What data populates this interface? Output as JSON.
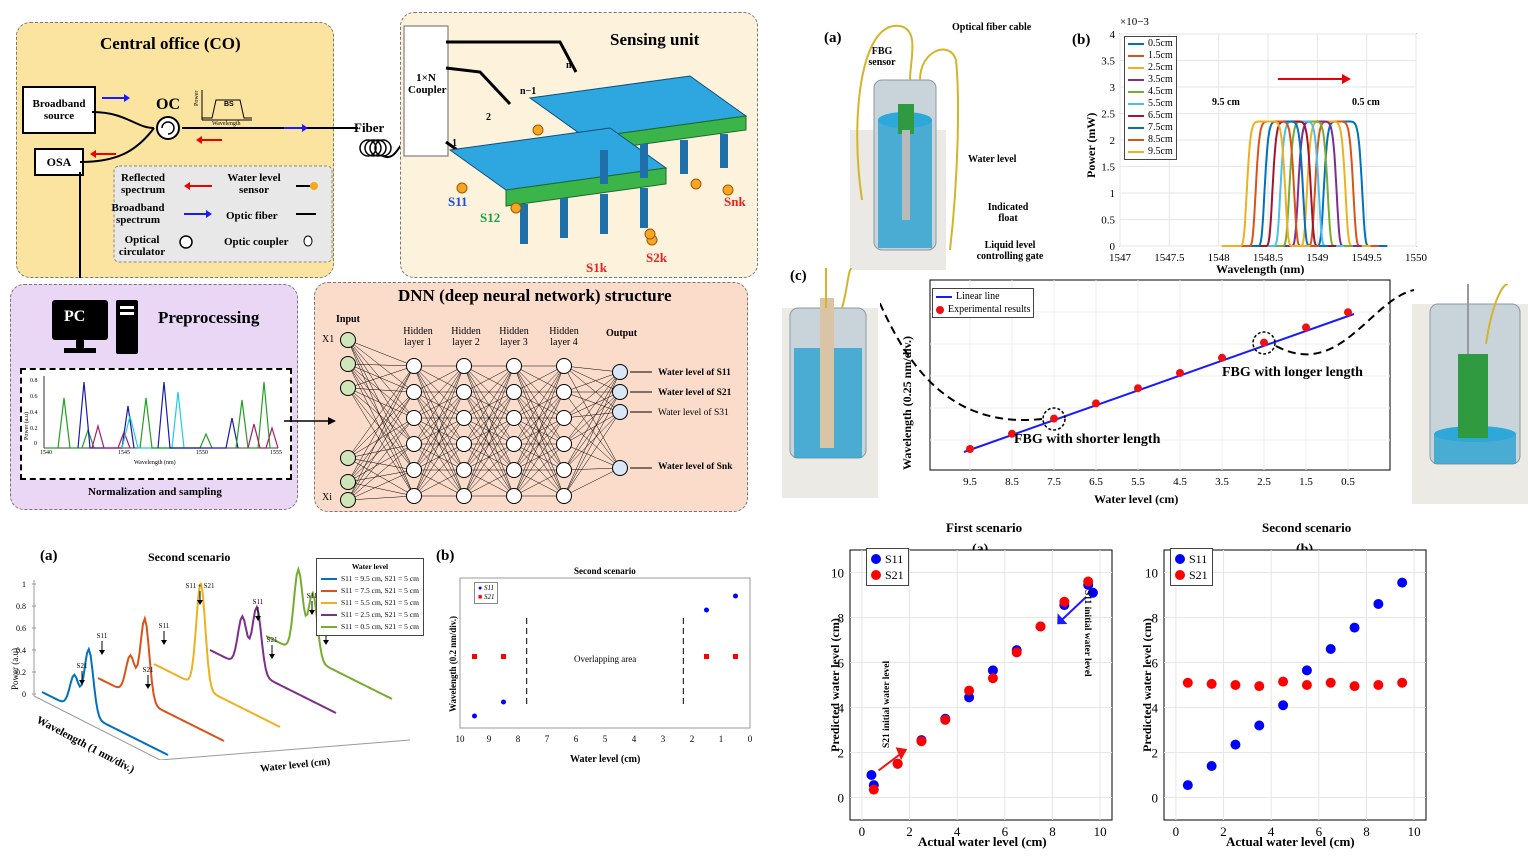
{
  "co": {
    "title": "Central office (CO)",
    "broadband": "Broadband source",
    "osa": "OSA",
    "oc": "OC",
    "bs": "BS",
    "power": "Power",
    "wavelength": "Wavelength",
    "fiber": "Fiber",
    "legend": {
      "reflected": "Reflected spectrum",
      "broadband": "Broadband spectrum",
      "circulator": "Optical circulator",
      "wl_sensor": "Water level sensor",
      "optic_fiber": "Optic fiber",
      "optic_coupler": "Optic coupler"
    }
  },
  "sensing": {
    "title": "Sensing unit",
    "coupler": "1×N Coupler",
    "labels": [
      "S11",
      "S12",
      "S1k",
      "S2k",
      "Snk"
    ],
    "branches": [
      "1",
      "2",
      "n−1",
      "n"
    ]
  },
  "pre": {
    "title": "Preprocessing",
    "pc": "PC",
    "caption": "Normalization and sampling",
    "xlabel": "Wavelength (nm)",
    "ylabel": "Power (a.u)",
    "xticks": [
      "1540",
      "1545",
      "1550",
      "1555"
    ],
    "yticks": [
      "0",
      "0.2",
      "0.4",
      "0.6",
      "0.8"
    ]
  },
  "dnn": {
    "title": "DNN (deep neural network) structure",
    "input": "Input",
    "layers": [
      "Hidden layer 1",
      "Hidden layer 2",
      "Hidden layer 3",
      "Hidden layer 4"
    ],
    "output": "Output",
    "x1": "X1",
    "xi": "Xi",
    "outputs": [
      "Water level of S11",
      "Water level of S21",
      "Water level of S31",
      "Water level of Snk"
    ]
  },
  "fig_a_left": {
    "tag": "(a)",
    "title": "Second scenario",
    "ylabel": "Power (a.u)",
    "xlabel": "Wavelength (1 nm/div.)",
    "zlabel": "Water level (cm)",
    "yticks": [
      "0",
      "0.2",
      "0.4",
      "0.6",
      "0.8",
      "1"
    ],
    "legend_title": "Water level",
    "series": [
      {
        "name": "S11 = 9.5 cm, S21 = 5 cm",
        "color": "#0072BD"
      },
      {
        "name": "S11 = 7.5 cm, S21 = 5 cm",
        "color": "#D95319"
      },
      {
        "name": "S11 = 5.5 cm, S21 = 5 cm",
        "color": "#EDB120"
      },
      {
        "name": "S11 = 2.5 cm, S21 = 5 cm",
        "color": "#7E2F8E"
      },
      {
        "name": "S11 = 0.5 cm, S21 = 5 cm",
        "color": "#77AC30"
      }
    ],
    "annotations": [
      "S21",
      "S11",
      "S21",
      "S11",
      "S11 + S21",
      "S11",
      "S21",
      "S11",
      "S21"
    ]
  },
  "fig_b_left": {
    "tag": "(b)",
    "title": "Second scenario",
    "ylabel": "Wavelength (0.2 nm/div.)",
    "xlabel": "Water  level (cm)",
    "overlap": "Overlapping area",
    "legend": [
      "S11",
      "S21"
    ],
    "xticks": [
      "10",
      "9",
      "8",
      "7",
      "6",
      "5",
      "4",
      "3",
      "2",
      "1",
      "0"
    ]
  },
  "fig_top_a": {
    "tag": "(a)",
    "labels": [
      "Optical fiber cable",
      "FBG sensor",
      "Water level",
      "Indicated float",
      "Liquid level controlling gate"
    ]
  },
  "fig_top_b": {
    "tag": "(b)",
    "exponent": "×10−3",
    "ylabel": "Power (mW)",
    "xlabel": "Wavelength (nm)",
    "xticks": [
      "1547",
      "1547.5",
      "1548",
      "1548.5",
      "1549",
      "1549.5",
      "1550"
    ],
    "yticks": [
      "0",
      "0.5",
      "1",
      "1.5",
      "2",
      "2.5",
      "3",
      "3.5",
      "4"
    ],
    "arrow_left": "9.5 cm",
    "arrow_right": "0.5 cm",
    "series": [
      {
        "name": "0.5cm",
        "color": "#0072BD",
        "center": 1549.26
      },
      {
        "name": "1.5cm",
        "color": "#D95319",
        "center": 1549.17
      },
      {
        "name": "2.5cm",
        "color": "#EDB120",
        "center": 1549.09
      },
      {
        "name": "3.5cm",
        "color": "#7E2F8E",
        "center": 1549.0
      },
      {
        "name": "4.5cm",
        "color": "#77AC30",
        "center": 1548.91
      },
      {
        "name": "5.5cm",
        "color": "#4DBEEE",
        "center": 1548.82
      },
      {
        "name": "6.5cm",
        "color": "#A2142F",
        "center": 1548.74
      },
      {
        "name": "7.5cm",
        "color": "#0072BD",
        "center": 1548.66
      },
      {
        "name": "8.5cm",
        "color": "#D95319",
        "center": 1548.57
      },
      {
        "name": "9.5cm",
        "color": "#EDB120",
        "center": 1548.48
      }
    ]
  },
  "fig_c": {
    "tag": "(c)",
    "ylabel": "Wavelength (0.25 nm/div.)",
    "xlabel": "Water level (cm)",
    "xticks": [
      "9.5",
      "8.5",
      "7.5",
      "6.5",
      "5.5",
      "4.5",
      "3.5",
      "2.5",
      "1.5",
      "0.5"
    ],
    "legend": [
      "Linear line",
      "Experimental results"
    ],
    "short": "FBG with shorter length",
    "long": "FBG with longer length"
  },
  "chart_data": [
    {
      "type": "scatter",
      "title": "First scenario",
      "tag": "(a)",
      "xlabel": "Actual water level (cm)",
      "ylabel": "Predicted water level (cm)",
      "xlim": [
        -0.5,
        10.5
      ],
      "ylim": [
        -1,
        11
      ],
      "xticks": [
        "0",
        "2",
        "4",
        "6",
        "8",
        "10"
      ],
      "yticks": [
        "0",
        "2",
        "4",
        "6",
        "8",
        "10"
      ],
      "annotations": [
        "S21 initial water level",
        "S11 initial water level"
      ],
      "series": [
        {
          "name": "S11",
          "color": "#0000FF",
          "points": [
            [
              0.5,
              0.55
            ],
            [
              1.5,
              1.5
            ],
            [
              2.5,
              2.55
            ],
            [
              3.5,
              3.5
            ],
            [
              4.5,
              4.45
            ],
            [
              5.5,
              5.65
            ],
            [
              6.5,
              6.55
            ],
            [
              7.5,
              7.6
            ],
            [
              8.5,
              8.55
            ],
            [
              9.5,
              9.45
            ],
            [
              9.7,
              9.1
            ],
            [
              0.4,
              1.0
            ]
          ]
        },
        {
          "name": "S21",
          "color": "#FF0000",
          "points": [
            [
              0.5,
              0.35
            ],
            [
              1.5,
              1.5
            ],
            [
              2.5,
              2.5
            ],
            [
              3.5,
              3.45
            ],
            [
              4.5,
              4.75
            ],
            [
              5.5,
              5.3
            ],
            [
              6.5,
              6.45
            ],
            [
              7.5,
              7.6
            ],
            [
              8.5,
              8.7
            ],
            [
              9.5,
              9.6
            ]
          ]
        }
      ]
    },
    {
      "type": "scatter",
      "title": "Second scenario",
      "tag": "(b)",
      "xlabel": "Actual water level (cm)",
      "ylabel": "Predicted water level (cm)",
      "xlim": [
        -0.5,
        10.5
      ],
      "ylim": [
        -1,
        11
      ],
      "xticks": [
        "0",
        "2",
        "4",
        "6",
        "8",
        "10"
      ],
      "yticks": [
        "0",
        "2",
        "4",
        "6",
        "8",
        "10"
      ],
      "series": [
        {
          "name": "S11",
          "color": "#0000FF",
          "points": [
            [
              0.5,
              0.55
            ],
            [
              1.5,
              1.4
            ],
            [
              2.5,
              2.35
            ],
            [
              3.5,
              3.2
            ],
            [
              4.5,
              4.1
            ],
            [
              5.5,
              5.65
            ],
            [
              6.5,
              6.6
            ],
            [
              7.5,
              7.55
            ],
            [
              8.5,
              8.6
            ],
            [
              9.5,
              9.55
            ]
          ]
        },
        {
          "name": "S21",
          "color": "#FF0000",
          "points": [
            [
              0.5,
              5.1
            ],
            [
              1.5,
              5.05
            ],
            [
              2.5,
              5.0
            ],
            [
              3.5,
              4.95
            ],
            [
              4.5,
              5.15
            ],
            [
              5.5,
              5.0
            ],
            [
              6.5,
              5.1
            ],
            [
              7.5,
              4.95
            ],
            [
              8.5,
              5.0
            ],
            [
              9.5,
              5.1
            ]
          ]
        }
      ]
    }
  ]
}
